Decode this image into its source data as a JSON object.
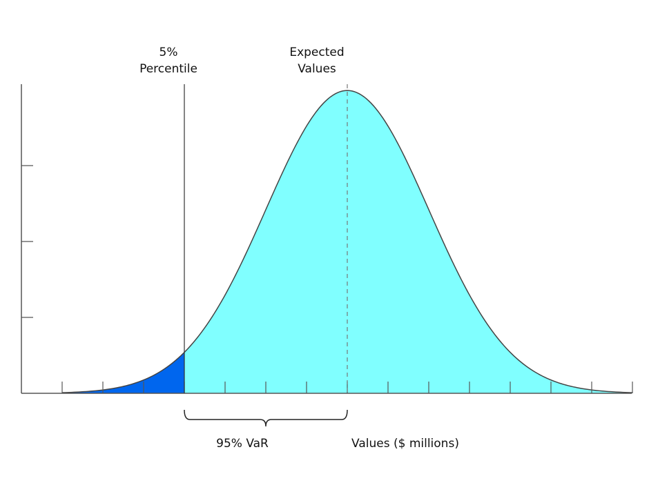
{
  "chart_data": {
    "type": "area",
    "title": "",
    "xlabel": "Values ($ millions)",
    "ylabel": "",
    "distribution": "normal",
    "mean": 0,
    "std_dev": 1,
    "xlim": [
      -4,
      3.5
    ],
    "x_ticks": [
      -3.5,
      -3,
      -2.5,
      -2,
      -1.5,
      -1,
      -0.5,
      0,
      0.5,
      1,
      1.5,
      2,
      2.5,
      3,
      3.5
    ],
    "y_ticks": [
      0.1,
      0.2,
      0.3
    ],
    "ylim": [
      0,
      0.4
    ],
    "curve_range": [
      -3.5,
      3.5
    ],
    "percentile_5_x": -2,
    "expected_value_x": 0,
    "tail_region": [
      -3.5,
      -2
    ],
    "main_region": [
      -2,
      3.5
    ],
    "annotations": {
      "percentile_label_line1": "5%",
      "percentile_label_line2": "Percentile",
      "expected_label_line1": "Expected",
      "expected_label_line2": "Values",
      "var_label": "95% VaR"
    },
    "colors": {
      "tail_fill": "#0066EE",
      "main_fill": "#80FFFF",
      "curve_stroke": "#444444",
      "axis": "#555555"
    }
  }
}
